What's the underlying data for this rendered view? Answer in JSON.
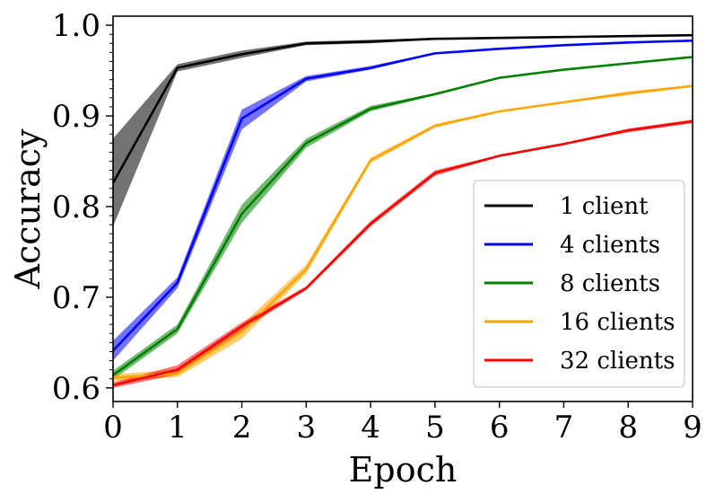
{
  "chart_data": {
    "type": "line",
    "xlabel": "Epoch",
    "ylabel": "Accuracy",
    "xlim": [
      0,
      9
    ],
    "ylim": [
      0.585,
      1.01
    ],
    "xticks": [
      "0",
      "1",
      "2",
      "3",
      "4",
      "5",
      "6",
      "7",
      "8",
      "9"
    ],
    "yticks": [
      "0.6",
      "0.7",
      "0.8",
      "0.9",
      "1.0"
    ],
    "grid": false,
    "legend_position": "bottom-right",
    "x": [
      0,
      1,
      2,
      3,
      4,
      5,
      6,
      7,
      8,
      9
    ],
    "series": [
      {
        "name": "1 client",
        "color": "#000000",
        "values": [
          0.826,
          0.953,
          0.968,
          0.98,
          0.982,
          0.985,
          0.986,
          0.987,
          0.988,
          0.989
        ],
        "lower": [
          0.778,
          0.949,
          0.964,
          0.978,
          0.98,
          0.984,
          0.985,
          0.986,
          0.987,
          0.988
        ],
        "upper": [
          0.875,
          0.957,
          0.972,
          0.982,
          0.984,
          0.986,
          0.987,
          0.988,
          0.989,
          0.99
        ]
      },
      {
        "name": "4 clients",
        "color": "#0000ff",
        "values": [
          0.641,
          0.716,
          0.897,
          0.941,
          0.953,
          0.969,
          0.974,
          0.978,
          0.981,
          0.983
        ],
        "lower": [
          0.63,
          0.71,
          0.885,
          0.938,
          0.951,
          0.968,
          0.973,
          0.977,
          0.98,
          0.982
        ],
        "upper": [
          0.652,
          0.722,
          0.907,
          0.944,
          0.955,
          0.97,
          0.975,
          0.979,
          0.982,
          0.984
        ]
      },
      {
        "name": "8 clients",
        "color": "#008000",
        "values": [
          0.614,
          0.665,
          0.792,
          0.87,
          0.908,
          0.924,
          0.942,
          0.951,
          0.958,
          0.965
        ],
        "lower": [
          0.609,
          0.66,
          0.782,
          0.865,
          0.905,
          0.923,
          0.941,
          0.95,
          0.957,
          0.964
        ],
        "upper": [
          0.619,
          0.67,
          0.802,
          0.875,
          0.911,
          0.925,
          0.943,
          0.952,
          0.959,
          0.966
        ]
      },
      {
        "name": "16 clients",
        "color": "#ffa500",
        "values": [
          0.611,
          0.616,
          0.662,
          0.731,
          0.851,
          0.889,
          0.905,
          0.915,
          0.925,
          0.933
        ],
        "lower": [
          0.607,
          0.612,
          0.654,
          0.726,
          0.848,
          0.887,
          0.904,
          0.914,
          0.923,
          0.932
        ],
        "upper": [
          0.615,
          0.62,
          0.67,
          0.736,
          0.854,
          0.891,
          0.906,
          0.916,
          0.927,
          0.934
        ]
      },
      {
        "name": "32 clients",
        "color": "#ff0000",
        "values": [
          0.603,
          0.62,
          0.668,
          0.71,
          0.781,
          0.837,
          0.856,
          0.869,
          0.884,
          0.894
        ],
        "lower": [
          0.6,
          0.615,
          0.664,
          0.708,
          0.778,
          0.834,
          0.855,
          0.868,
          0.882,
          0.892
        ],
        "upper": [
          0.606,
          0.625,
          0.672,
          0.712,
          0.784,
          0.84,
          0.857,
          0.87,
          0.886,
          0.896
        ]
      }
    ]
  }
}
